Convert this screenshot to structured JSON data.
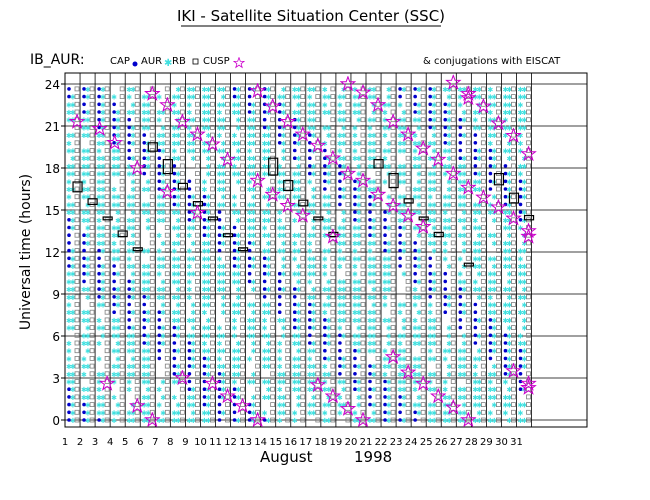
{
  "chart_data": {
    "type": "scatter",
    "title": "IKI - Satellite Situation Center (SSC)",
    "panel_label": "IB_AUR:",
    "legend": {
      "cap": "CAP",
      "aur": "AUR",
      "rb": "RB",
      "cusp": "CUSP",
      "conj": "& conjugations with EISCAT"
    },
    "ylabel": "Universal time (hours)",
    "ylim": [
      0,
      24
    ],
    "yticks": [
      "0",
      "3",
      "6",
      "9",
      "12",
      "15",
      "18",
      "21",
      "24"
    ],
    "xlim": [
      1,
      32
    ],
    "xticks": [
      "1",
      "2",
      "3",
      "4",
      "5",
      "6",
      "7",
      "8",
      "9",
      "10",
      "11",
      "12",
      "13",
      "14",
      "15",
      "16",
      "17",
      "18",
      "19",
      "20",
      "21",
      "22",
      "23",
      "24",
      "25",
      "26",
      "27",
      "28",
      "29",
      "30",
      "31"
    ],
    "month_label": "August",
    "year_label": "1998",
    "grid": true,
    "colors": {
      "cap": "#808080",
      "aur": "#0000cc",
      "rb": "#40e0e0",
      "conj": "#cc00cc",
      "grid": "#000000"
    },
    "cusp_intervals": [
      [
        1.8,
        16.3,
        17.0
      ],
      [
        2.8,
        15.4,
        15.8
      ],
      [
        3.8,
        14.3,
        14.5
      ],
      [
        4.8,
        13.1,
        13.5
      ],
      [
        5.8,
        12.1,
        12.3
      ],
      [
        6.8,
        19.2,
        19.8
      ],
      [
        7.8,
        17.6,
        18.6
      ],
      [
        8.8,
        16.5,
        16.9
      ],
      [
        9.8,
        15.3,
        15.6
      ],
      [
        10.8,
        14.3,
        14.5
      ],
      [
        11.8,
        13.1,
        13.3
      ],
      [
        12.8,
        12.1,
        12.3
      ],
      [
        14.8,
        17.5,
        18.7
      ],
      [
        15.8,
        16.4,
        17.1
      ],
      [
        16.8,
        15.3,
        15.7
      ],
      [
        17.8,
        14.3,
        14.5
      ],
      [
        18.8,
        13.1,
        13.4
      ],
      [
        21.8,
        18.0,
        18.6
      ],
      [
        22.8,
        16.6,
        17.6
      ],
      [
        23.8,
        15.5,
        15.8
      ],
      [
        24.8,
        14.3,
        14.5
      ],
      [
        25.8,
        13.1,
        13.4
      ],
      [
        27.8,
        11.0,
        11.2
      ],
      [
        29.8,
        16.8,
        17.6
      ],
      [
        30.8,
        15.5,
        16.2
      ],
      [
        31.8,
        14.3,
        14.6
      ]
    ],
    "conjunctions": [
      [
        1.8,
        21.3
      ],
      [
        3.3,
        20.8
      ],
      [
        3.8,
        2.6
      ],
      [
        4.3,
        19.8
      ],
      [
        5.8,
        18.0
      ],
      [
        5.8,
        1.0
      ],
      [
        6.8,
        23.3
      ],
      [
        6.8,
        0.0
      ],
      [
        7.8,
        22.5
      ],
      [
        7.8,
        16.3
      ],
      [
        8.8,
        21.3
      ],
      [
        8.8,
        3.0
      ],
      [
        9.8,
        20.4
      ],
      [
        9.8,
        14.8
      ],
      [
        10.8,
        19.7
      ],
      [
        10.8,
        2.6
      ],
      [
        11.8,
        18.6
      ],
      [
        11.8,
        1.7
      ],
      [
        12.8,
        1.0
      ],
      [
        13.8,
        23.5
      ],
      [
        13.8,
        17.1
      ],
      [
        13.8,
        0.0
      ],
      [
        14.8,
        22.4
      ],
      [
        14.8,
        16.1
      ],
      [
        15.8,
        21.3
      ],
      [
        15.8,
        15.3
      ],
      [
        16.8,
        20.4
      ],
      [
        16.8,
        14.6
      ],
      [
        17.8,
        19.6
      ],
      [
        17.8,
        2.5
      ],
      [
        18.8,
        18.7
      ],
      [
        18.8,
        13.1
      ],
      [
        18.8,
        1.7
      ],
      [
        19.8,
        24.0
      ],
      [
        19.8,
        17.6
      ],
      [
        19.8,
        0.8
      ],
      [
        20.8,
        23.4
      ],
      [
        20.8,
        17.1
      ],
      [
        20.8,
        0.0
      ],
      [
        21.8,
        22.5
      ],
      [
        21.8,
        16.1
      ],
      [
        22.8,
        21.3
      ],
      [
        22.8,
        15.3
      ],
      [
        22.8,
        4.5
      ],
      [
        23.8,
        20.4
      ],
      [
        23.8,
        14.6
      ],
      [
        23.8,
        3.4
      ],
      [
        24.8,
        19.4
      ],
      [
        24.8,
        13.8
      ],
      [
        24.8,
        2.6
      ],
      [
        25.8,
        18.6
      ],
      [
        25.8,
        1.7
      ],
      [
        26.8,
        24.1
      ],
      [
        26.8,
        17.6
      ],
      [
        26.8,
        0.9
      ],
      [
        27.8,
        23.3
      ],
      [
        27.8,
        23.0
      ],
      [
        27.8,
        16.6
      ],
      [
        27.8,
        0.0
      ],
      [
        28.8,
        22.4
      ],
      [
        28.8,
        15.9
      ],
      [
        29.8,
        21.2
      ],
      [
        29.8,
        15.2
      ],
      [
        30.8,
        20.3
      ],
      [
        30.8,
        14.4
      ],
      [
        30.8,
        3.5
      ],
      [
        31.8,
        19.0
      ],
      [
        31.8,
        13.5
      ],
      [
        31.8,
        13.1
      ],
      [
        31.8,
        2.6
      ],
      [
        31.8,
        2.3
      ]
    ]
  }
}
